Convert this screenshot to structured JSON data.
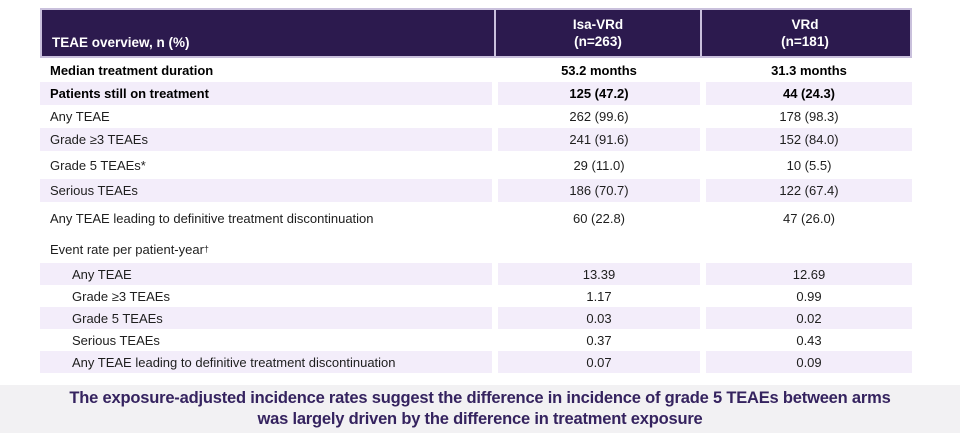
{
  "table": {
    "header": {
      "col_label": "TEAE overview, n (%)",
      "col_isa_line1": "Isa-VRd",
      "col_isa_line2": "(n=263)",
      "col_vrd_line1": "VRd",
      "col_vrd_line2": "(n=181)"
    },
    "rows": [
      {
        "label": "Median treatment duration",
        "isa": "53.2 months",
        "vrd": "31.3 months",
        "bold": true,
        "stripe": false
      },
      {
        "label": "Patients still on treatment",
        "isa": "125 (47.2)",
        "vrd": "44 (24.3)",
        "bold": true,
        "stripe": true
      },
      {
        "label": "Any TEAE",
        "isa": "262 (99.6)",
        "vrd": "178 (98.3)",
        "stripe": false
      },
      {
        "label": "Grade ≥3 TEAEs",
        "isa": "241 (91.6)",
        "vrd": "152 (84.0)",
        "stripe": true
      },
      {
        "label": "Grade 5 TEAEs*",
        "isa": "29 (11.0)",
        "vrd": "10 (5.5)",
        "stripe": false,
        "med": true
      },
      {
        "label": "Serious TEAEs",
        "isa": "186 (70.7)",
        "vrd": "122 (67.4)",
        "stripe": true
      },
      {
        "label": "Any TEAE leading to definitive treatment discontinuation",
        "isa": "60 (22.8)",
        "vrd": "47 (26.0)",
        "stripe": false,
        "tall": true
      },
      {
        "label": "Event rate per patient-year",
        "sup": "†",
        "isa": "",
        "vrd": "",
        "stripe": false,
        "med": true
      },
      {
        "label": "Any TEAE",
        "isa": "13.39",
        "vrd": "12.69",
        "stripe": true,
        "sub": true
      },
      {
        "label": "Grade ≥3 TEAEs",
        "isa": "1.17",
        "vrd": "0.99",
        "stripe": false,
        "sub": true
      },
      {
        "label": "Grade 5 TEAEs",
        "isa": "0.03",
        "vrd": "0.02",
        "stripe": true,
        "sub": true
      },
      {
        "label": "Serious TEAEs",
        "isa": "0.37",
        "vrd": "0.43",
        "stripe": false,
        "sub": true
      },
      {
        "label": "Any TEAE leading to definitive treatment discontinuation",
        "isa": "0.07",
        "vrd": "0.09",
        "stripe": true,
        "sub": true
      }
    ]
  },
  "banner": {
    "line1": "The exposure-adjusted incidence rates suggest the difference in incidence of grade 5 TEAEs between arms",
    "line2": "was largely driven by the difference in treatment exposure"
  },
  "colors": {
    "header_bg": "#2c1a4e",
    "header_border": "#c9c0dc",
    "stripe": "#f3edfa",
    "banner_bg": "#f2f1f3",
    "banner_text": "#35235f"
  }
}
